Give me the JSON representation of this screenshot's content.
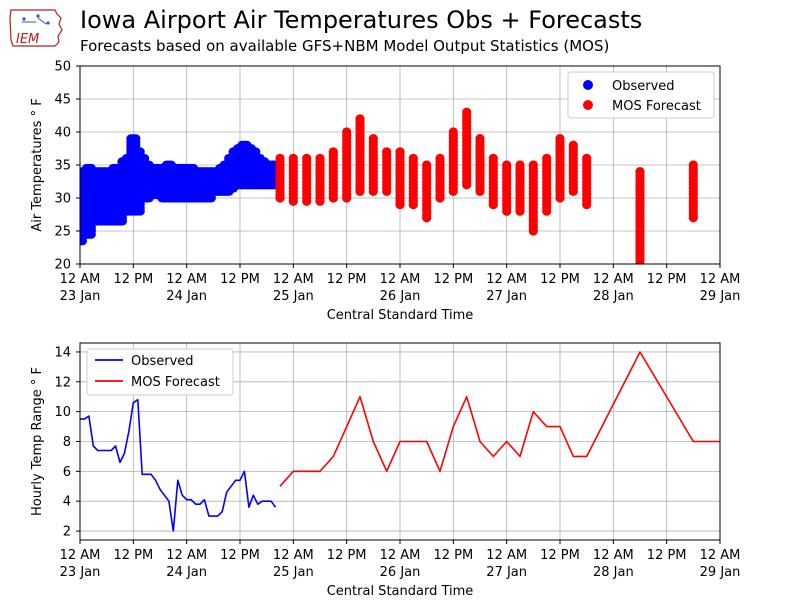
{
  "header": {
    "logo_text": "IEM",
    "title": "Iowa Airport Air Temperatures Obs + Forecasts",
    "subtitle": "Forecasts based on available GFS+NBM Model Output Statistics (MOS)"
  },
  "colors": {
    "observed": "#0000ff",
    "forecast": "#ff0000",
    "grid": "#b0b0b0"
  },
  "chart_data": [
    {
      "type": "scatter",
      "ylabel": "Air Temperatures ° F",
      "xlabel": "Central Standard Time",
      "xlim": [
        0,
        144
      ],
      "ylim": [
        20,
        50
      ],
      "yticks": [
        20,
        25,
        30,
        35,
        40,
        45,
        50
      ],
      "xticks": [
        {
          "x": 0,
          "line1": "12 AM",
          "line2": "23 Jan"
        },
        {
          "x": 12,
          "line1": "12 PM",
          "line2": ""
        },
        {
          "x": 24,
          "line1": "12 AM",
          "line2": "24 Jan"
        },
        {
          "x": 36,
          "line1": "12 PM",
          "line2": ""
        },
        {
          "x": 48,
          "line1": "12 AM",
          "line2": "25 Jan"
        },
        {
          "x": 60,
          "line1": "12 PM",
          "line2": ""
        },
        {
          "x": 72,
          "line1": "12 AM",
          "line2": "26 Jan"
        },
        {
          "x": 84,
          "line1": "12 PM",
          "line2": ""
        },
        {
          "x": 96,
          "line1": "12 AM",
          "line2": "27 Jan"
        },
        {
          "x": 108,
          "line1": "12 PM",
          "line2": ""
        },
        {
          "x": 120,
          "line1": "12 AM",
          "line2": "28 Jan"
        },
        {
          "x": 132,
          "line1": "12 PM",
          "line2": ""
        },
        {
          "x": 144,
          "line1": "12 AM",
          "line2": "29 Jan"
        }
      ],
      "x_unit": "hours after 12 AM 23 Jan",
      "legend": {
        "position": "upper-right",
        "entries": [
          {
            "label": "Observed",
            "series": "observed"
          },
          {
            "label": "MOS Forecast",
            "series": "forecast"
          }
        ]
      },
      "observed_hourly_ranges": [
        [
          0,
          23.5,
          33.5
        ],
        [
          1,
          24.5,
          34
        ],
        [
          2,
          24.5,
          34.5
        ],
        [
          3,
          26.5,
          34
        ],
        [
          4,
          26.5,
          34
        ],
        [
          5,
          26.5,
          34
        ],
        [
          6,
          26.5,
          34
        ],
        [
          7,
          26.5,
          34
        ],
        [
          8,
          26.5,
          34.5
        ],
        [
          9,
          26.5,
          34.5
        ],
        [
          10,
          28,
          35.5
        ],
        [
          11,
          28,
          36
        ],
        [
          12,
          28,
          39
        ],
        [
          13,
          28,
          37
        ],
        [
          14,
          30,
          36
        ],
        [
          15,
          30,
          35
        ],
        [
          16,
          30.5,
          34.5
        ],
        [
          17,
          30.5,
          34.5
        ],
        [
          18,
          30.5,
          34.5
        ],
        [
          19,
          30,
          34
        ],
        [
          20,
          30,
          35
        ],
        [
          21,
          30,
          34.5
        ],
        [
          22,
          30,
          34.5
        ],
        [
          23,
          30,
          34.5
        ],
        [
          24,
          30,
          34.5
        ],
        [
          25,
          30,
          34.5
        ],
        [
          26,
          30,
          34
        ],
        [
          27,
          30,
          34
        ],
        [
          28,
          30,
          34
        ],
        [
          29,
          30,
          34
        ],
        [
          30,
          31,
          34
        ],
        [
          31,
          31,
          34
        ],
        [
          32,
          31,
          34.5
        ],
        [
          33,
          31,
          35
        ],
        [
          34,
          31.5,
          36
        ],
        [
          35,
          32,
          37
        ],
        [
          36,
          32,
          37.5
        ],
        [
          37,
          32,
          38
        ],
        [
          38,
          32,
          37.5
        ],
        [
          39,
          32,
          37
        ],
        [
          40,
          32,
          36
        ],
        [
          41,
          32,
          35.5
        ],
        [
          42,
          32,
          35
        ],
        [
          43,
          32,
          35
        ],
        [
          44,
          32,
          35
        ]
      ],
      "forecast_ranges": [
        [
          45,
          30,
          36
        ],
        [
          48,
          29.5,
          36
        ],
        [
          51,
          29.5,
          36
        ],
        [
          54,
          29.5,
          36
        ],
        [
          57,
          30,
          37
        ],
        [
          60,
          30,
          40
        ],
        [
          63,
          31,
          42
        ],
        [
          66,
          31,
          39
        ],
        [
          69,
          31,
          37
        ],
        [
          72,
          29,
          37
        ],
        [
          75,
          29,
          36
        ],
        [
          78,
          27,
          35
        ],
        [
          81,
          30,
          36
        ],
        [
          84,
          31,
          40
        ],
        [
          87,
          32,
          43
        ],
        [
          90,
          31,
          39
        ],
        [
          93,
          29,
          36
        ],
        [
          96,
          28,
          35
        ],
        [
          99,
          28,
          35
        ],
        [
          102,
          25,
          35
        ],
        [
          105,
          28,
          36
        ],
        [
          108,
          30,
          39
        ],
        [
          111,
          31,
          38
        ],
        [
          114,
          29,
          36
        ],
        [
          126,
          20,
          34
        ],
        [
          138,
          27,
          35
        ]
      ]
    },
    {
      "type": "line",
      "ylabel": "Hourly Temp Range ° F",
      "xlabel": "Central Standard Time",
      "xlim": [
        0,
        144
      ],
      "ylim": [
        1.4,
        14.6
      ],
      "yticks": [
        2,
        4,
        6,
        8,
        10,
        12,
        14
      ],
      "legend": {
        "position": "upper-left",
        "entries": [
          {
            "label": "Observed",
            "series": "observed"
          },
          {
            "label": "MOS Forecast",
            "series": "forecast"
          }
        ]
      },
      "series": [
        {
          "name": "Observed",
          "key": "observed",
          "x": [
            0,
            1,
            2,
            3,
            4,
            5,
            6,
            7,
            8,
            9,
            10,
            11,
            12,
            13,
            14,
            15,
            16,
            17,
            18,
            19,
            20,
            21,
            22,
            23,
            24,
            25,
            26,
            27,
            28,
            29,
            30,
            31,
            32,
            33,
            34,
            35,
            36,
            37,
            38,
            39,
            40,
            41,
            42,
            43,
            44
          ],
          "y": [
            9.5,
            9.5,
            9.7,
            7.7,
            7.4,
            7.4,
            7.4,
            7.4,
            7.7,
            6.6,
            7.2,
            8.7,
            10.6,
            10.8,
            5.8,
            5.8,
            5.8,
            5.4,
            4.8,
            4.4,
            4.0,
            2.0,
            5.4,
            4.4,
            4.1,
            4.1,
            3.8,
            3.8,
            4.1,
            3.0,
            3.0,
            3.0,
            3.3,
            4.6,
            5.0,
            5.4,
            5.4,
            6.0,
            3.6,
            4.4,
            3.8,
            4.0,
            4.0,
            4.0,
            3.6
          ]
        },
        {
          "name": "MOS Forecast",
          "key": "forecast",
          "x": [
            45,
            48,
            51,
            54,
            57,
            60,
            63,
            66,
            69,
            72,
            75,
            78,
            81,
            84,
            87,
            90,
            93,
            96,
            99,
            102,
            105,
            108,
            111,
            114,
            126,
            138,
            144
          ],
          "y": [
            5,
            6,
            6,
            6,
            7,
            9,
            11,
            8,
            6,
            8,
            8,
            8,
            6,
            9,
            11,
            8,
            7,
            8,
            7,
            10,
            9,
            9,
            7,
            7,
            14,
            8,
            8
          ]
        }
      ]
    }
  ]
}
